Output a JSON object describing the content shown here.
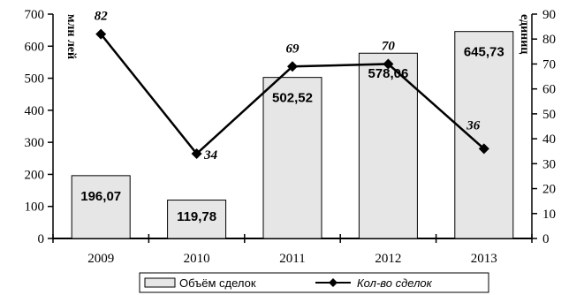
{
  "chart_data": {
    "type": "bar",
    "categories": [
      "2009",
      "2010",
      "2011",
      "2012",
      "2013"
    ],
    "series": [
      {
        "name": "Объём сделок",
        "type": "bar",
        "axis": "left",
        "values": [
          196.07,
          119.78,
          502.52,
          578.06,
          645.73
        ],
        "labels": [
          "196,07",
          "119,78",
          "502,52",
          "578,06",
          "645,73"
        ]
      },
      {
        "name": "Кол-во сделок",
        "type": "line",
        "axis": "right",
        "values": [
          82,
          34,
          69,
          70,
          36
        ],
        "labels": [
          "82",
          "34",
          "69",
          "70",
          "36"
        ]
      }
    ],
    "ylabel_left": "млн лей",
    "ylabel_right": "единиц",
    "ylim_left": [
      0,
      700
    ],
    "ylim_right": [
      0,
      90
    ],
    "yticks_left": [
      0,
      100,
      200,
      300,
      400,
      500,
      600,
      700
    ],
    "yticks_right": [
      0,
      10,
      20,
      30,
      40,
      50,
      60,
      70,
      80,
      90
    ],
    "grid": false,
    "legend_position": "bottom",
    "colors": {
      "bar_fill": "#e6e6e6",
      "bar_stroke": "#000000",
      "line": "#000000"
    }
  }
}
